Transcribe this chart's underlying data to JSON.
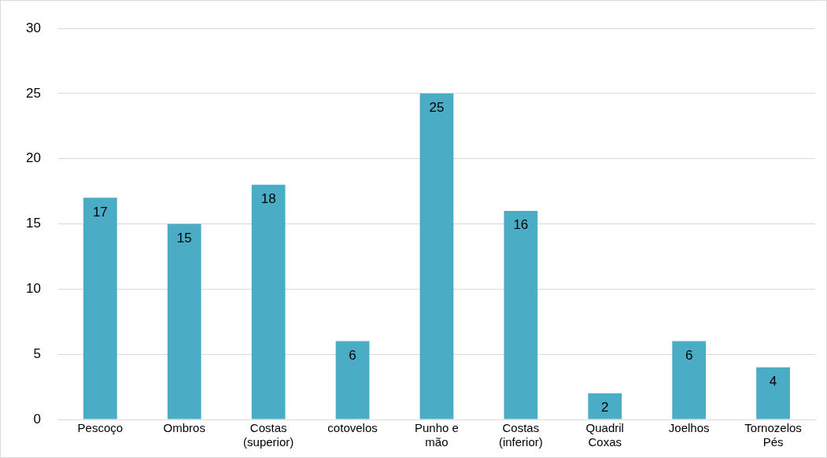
{
  "chart_data": {
    "type": "bar",
    "categories": [
      "Pescoço",
      "Ombros",
      "Costas (superior)",
      "cotovelos",
      "Punho e mão",
      "Costas (inferior)",
      "Quadril Coxas",
      "Joelhos",
      "Tornozelos Pés"
    ],
    "values": [
      17,
      15,
      18,
      6,
      25,
      16,
      2,
      6,
      4
    ],
    "color": "#4bacc6",
    "ylim": [
      0,
      30
    ],
    "yticks": [
      0,
      5,
      10,
      15,
      20,
      25,
      30
    ],
    "grid": "y",
    "data_labels": true,
    "legend": false
  }
}
